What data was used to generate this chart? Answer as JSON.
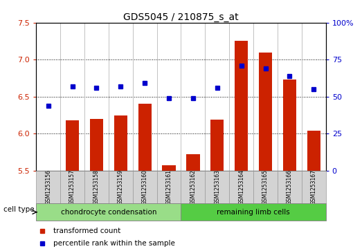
{
  "title": "GDS5045 / 210875_s_at",
  "samples": [
    "GSM1253156",
    "GSM1253157",
    "GSM1253158",
    "GSM1253159",
    "GSM1253160",
    "GSM1253161",
    "GSM1253162",
    "GSM1253163",
    "GSM1253164",
    "GSM1253165",
    "GSM1253166",
    "GSM1253167"
  ],
  "red_values": [
    5.5,
    6.18,
    6.2,
    6.25,
    6.4,
    5.57,
    5.72,
    6.19,
    7.25,
    7.1,
    6.73,
    6.04
  ],
  "blue_values": [
    44,
    57,
    56,
    57,
    59,
    49,
    49,
    56,
    71,
    69,
    64,
    55
  ],
  "red_color": "#cc2200",
  "blue_color": "#0000cc",
  "ylim_left": [
    5.5,
    7.5
  ],
  "ylim_right": [
    0,
    100
  ],
  "yticks_left": [
    5.5,
    6.0,
    6.5,
    7.0,
    7.5
  ],
  "yticks_right": [
    0,
    25,
    50,
    75,
    100
  ],
  "group1_label": "chondrocyte condensation",
  "group2_label": "remaining limb cells",
  "group1_indices": [
    0,
    1,
    2,
    3,
    4,
    5
  ],
  "group2_indices": [
    6,
    7,
    8,
    9,
    10,
    11
  ],
  "cell_type_label": "cell type",
  "legend_red": "transformed count",
  "legend_blue": "percentile rank within the sample",
  "bar_width": 0.55,
  "bg_color": "#d3d3d3",
  "group1_color": "#99dd88",
  "group2_color": "#55cc44",
  "grid_color": "#000000"
}
